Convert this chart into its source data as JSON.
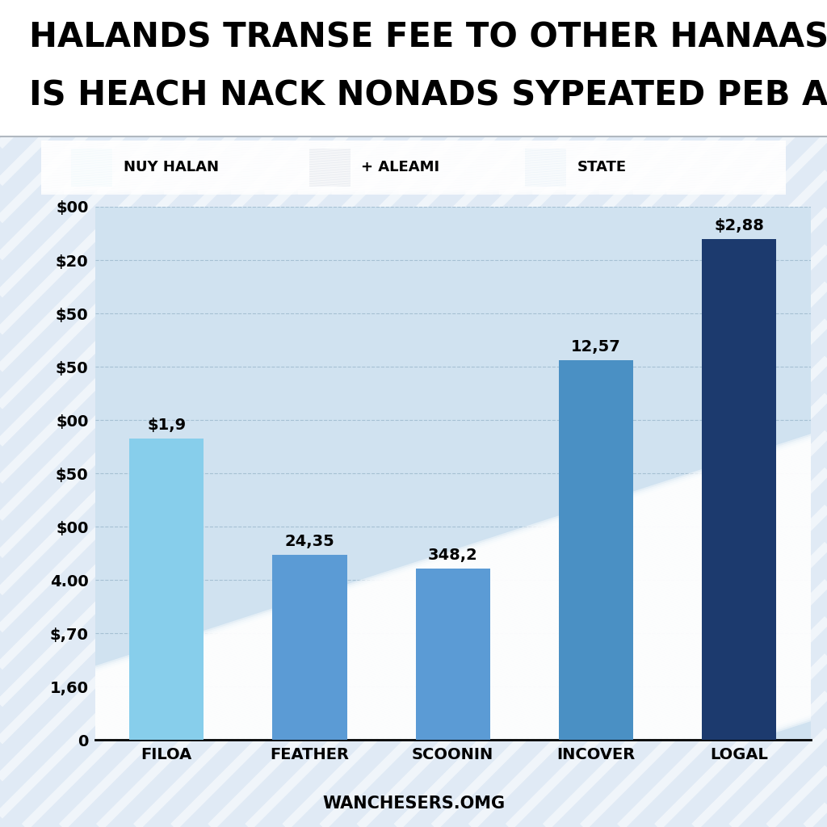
{
  "title_line1": "HALANDS TRANSE FEE TO OTHER HANAAS",
  "title_line2": "IS HEACH NACK NONADS SYPEATED PEB AND CITY",
  "categories": [
    "FILOA",
    "FEATHER",
    "SCOONIN",
    "INCOVER",
    "LOGAL"
  ],
  "values": [
    6.5,
    4.0,
    3.7,
    8.2,
    10.8
  ],
  "bar_labels": [
    "$1,9",
    "24,35",
    "348,2",
    "12,57",
    "$2,88"
  ],
  "bar_colors": [
    "#87CEEB",
    "#5B9BD5",
    "#5B9BD5",
    "#4A90C4",
    "#1C3A6E"
  ],
  "legend_items": [
    {
      "label": "NUY HALAN",
      "color": "#87CEEB"
    },
    {
      "label": "+ ALEAMI",
      "color": "#1C3A6E"
    },
    {
      "label": "STATE",
      "color": "#5B9BD5"
    }
  ],
  "ytick_labels": [
    "$00",
    "$20",
    "$50",
    "$50",
    "$00",
    "$50",
    "$00",
    "4.00",
    "$,70",
    "1,60",
    "0"
  ],
  "footer": "WANCHESERS.OMG",
  "bg_color": "#E0EAF5",
  "white_color": "#FFFFFF",
  "title_bg": "#FFFFFF",
  "chart_bg": "#D0E2F0",
  "grid_color": "#B0C8E0",
  "title_fontsize": 30,
  "tick_fontsize": 14,
  "bar_label_fontsize": 14,
  "legend_fontsize": 13,
  "footer_fontsize": 15
}
